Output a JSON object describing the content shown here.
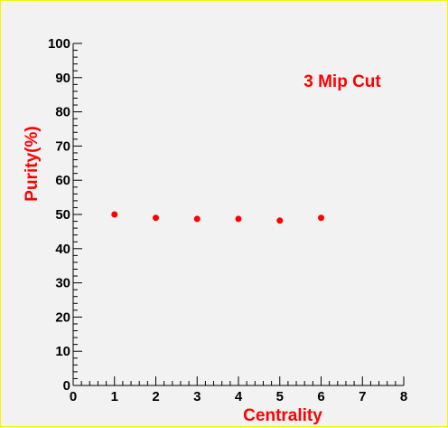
{
  "chart_data": {
    "type": "scatter",
    "title": "",
    "annotation": "3 Mip Cut",
    "xlabel": "Centrality",
    "ylabel": "Purity(%)",
    "xlim": [
      0,
      8
    ],
    "ylim": [
      0,
      100
    ],
    "x_ticks": [
      "0",
      "1",
      "2",
      "3",
      "4",
      "5",
      "6",
      "7",
      "8"
    ],
    "y_ticks": [
      "0",
      "10",
      "20",
      "30",
      "40",
      "50",
      "60",
      "70",
      "80",
      "90",
      "100"
    ],
    "grid": false,
    "series": [
      {
        "x": [
          1,
          2,
          3,
          4,
          5,
          6
        ],
        "y": [
          50.0,
          49.0,
          48.7,
          48.7,
          48.2,
          49.0
        ]
      }
    ],
    "colors": {
      "marker": "#ff0000",
      "titles": "#ff0000",
      "axis": "#000000",
      "background": "#f2f2f2",
      "frame": "#f5f500"
    }
  }
}
